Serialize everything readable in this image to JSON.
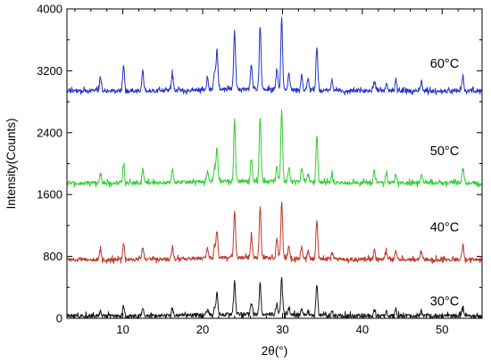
{
  "chart_data": {
    "type": "line",
    "title": "",
    "xlabel": "2θ(°)",
    "ylabel": "Intensity(Counts)",
    "xlim": [
      3,
      55
    ],
    "ylim": [
      0,
      4000
    ],
    "x_ticks": [
      10,
      20,
      30,
      40,
      50
    ],
    "y_ticks": [
      0,
      800,
      1600,
      2400,
      3200,
      4000
    ],
    "grid": false,
    "legend": "none (series labels placed at right of each curve)",
    "baseline_noise_amplitude": 35,
    "peak_positions_2theta": [
      7.2,
      10.1,
      12.5,
      16.2,
      20.6,
      21.5,
      21.8,
      24.0,
      26.1,
      27.2,
      29.3,
      29.9,
      30.8,
      32.4,
      33.2,
      34.3,
      36.2,
      41.5,
      43.0,
      44.2,
      47.4,
      52.6
    ],
    "series": [
      {
        "name": "30°C",
        "color": "#1a1a1a",
        "baseline": 30,
        "peak_heights": [
          60,
          130,
          100,
          90,
          70,
          90,
          280,
          430,
          150,
          400,
          130,
          480,
          90,
          80,
          60,
          400,
          60,
          70,
          60,
          90,
          70,
          130
        ]
      },
      {
        "name": "40°C",
        "color": "#c0392b",
        "baseline": 760,
        "peak_heights": [
          120,
          210,
          160,
          150,
          120,
          170,
          350,
          620,
          300,
          660,
          250,
          720,
          150,
          140,
          90,
          490,
          80,
          120,
          100,
          110,
          100,
          180
        ]
      },
      {
        "name": "50°C",
        "color": "#33cc33",
        "baseline": 1750,
        "peak_heights": [
          130,
          240,
          170,
          170,
          130,
          180,
          440,
          800,
          280,
          840,
          200,
          920,
          200,
          170,
          110,
          620,
          110,
          150,
          130,
          120,
          120,
          190
        ]
      },
      {
        "name": "60°C",
        "color": "#2233cc",
        "baseline": 2940,
        "peak_heights": [
          180,
          330,
          260,
          220,
          150,
          240,
          500,
          780,
          330,
          820,
          280,
          920,
          220,
          190,
          130,
          560,
          130,
          140,
          110,
          150,
          120,
          190
        ]
      }
    ]
  }
}
